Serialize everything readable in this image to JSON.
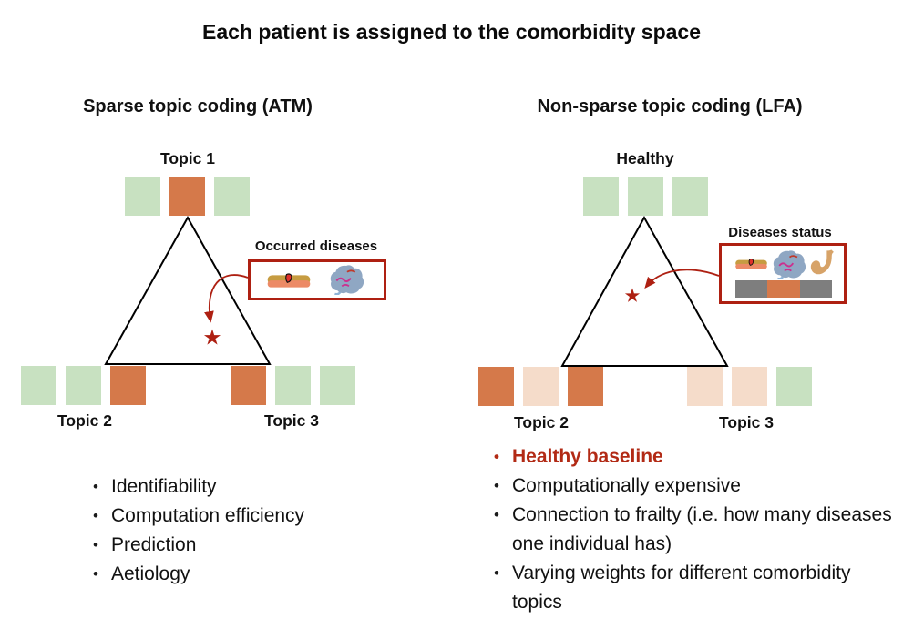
{
  "title": "Each patient is assigned to the comorbidity space",
  "colors": {
    "square_green": "#c8e1c1",
    "square_orange": "#d5794a",
    "square_pink": "#f5dcca",
    "bar_gray": "#7e7e7e",
    "accent_red": "#ae2012",
    "highlight_text_red": "#b22a15"
  },
  "left_panel": {
    "header": "Sparse topic coding (ATM)",
    "top_vertex_label": "Topic 1",
    "bottom_left_vertex_label": "Topic 2",
    "bottom_right_vertex_label": "Topic 3",
    "top_squares": [
      "green",
      "orange",
      "green"
    ],
    "bottom_left_squares": [
      "green",
      "green",
      "orange"
    ],
    "bottom_right_squares": [
      "orange",
      "green",
      "green"
    ],
    "legend": {
      "label": "Occurred diseases",
      "icons": [
        "skin-lesion-icon",
        "brain-icon"
      ]
    },
    "marker": "star",
    "bullets": [
      "Identifiability",
      "Computation efficiency",
      "Prediction",
      "Aetiology"
    ]
  },
  "right_panel": {
    "header": "Non-sparse topic coding (LFA)",
    "top_vertex_label": "Healthy",
    "bottom_left_vertex_label": "Topic 2",
    "bottom_right_vertex_label": "Topic 3",
    "top_squares": [
      "green",
      "green",
      "green"
    ],
    "bottom_left_squares": [
      "orange",
      "pink",
      "orange"
    ],
    "bottom_right_squares": [
      "pink",
      "pink",
      "green"
    ],
    "legend": {
      "label": "Diseases status",
      "icons": [
        "skin-lesion-icon",
        "brain-icon",
        "stomach-icon"
      ],
      "status_bar": [
        "gray",
        "orange",
        "gray"
      ]
    },
    "marker": "star",
    "bullets": [
      {
        "text": "Healthy baseline",
        "emphasis": true
      },
      {
        "text": "Computationally expensive",
        "emphasis": false
      },
      {
        "text": "Connection to frailty (i.e. how many diseases one individual has)",
        "emphasis": false
      },
      {
        "text": "Varying weights for different comorbidity topics",
        "emphasis": false
      }
    ]
  }
}
